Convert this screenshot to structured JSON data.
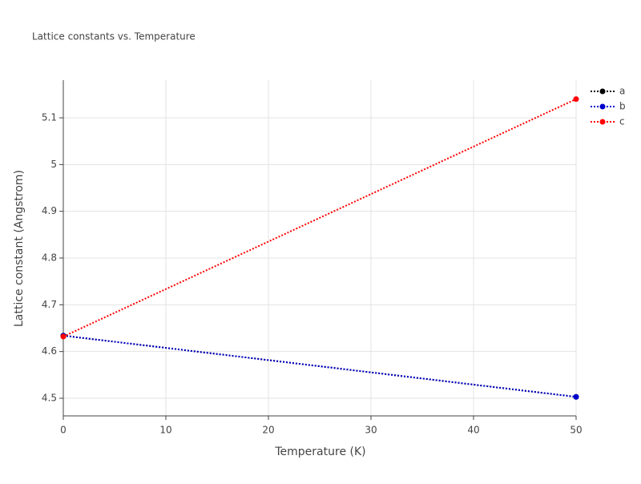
{
  "chart_data": {
    "type": "line",
    "title": "Lattice constants vs. Temperature",
    "x_label": "Temperature (K)",
    "y_label": "Lattice constant (Angstrom)",
    "x": [
      0,
      50
    ],
    "series": [
      {
        "name": "a",
        "color": "#000000",
        "values": [
          4.634,
          4.503
        ]
      },
      {
        "name": "b",
        "color": "#0000cc",
        "values": [
          4.634,
          4.503
        ]
      },
      {
        "name": "c",
        "color": "#ff0000",
        "values": [
          4.632,
          5.14
        ]
      }
    ],
    "xlim": [
      0,
      50
    ],
    "xticks": [
      0,
      10,
      20,
      30,
      40,
      50
    ],
    "ylim": [
      4.4623,
      5.1806
    ],
    "yticks": [
      4.5,
      4.6,
      4.7,
      4.8,
      4.9,
      5,
      5.1
    ],
    "grid": true,
    "legend": "top-right"
  }
}
